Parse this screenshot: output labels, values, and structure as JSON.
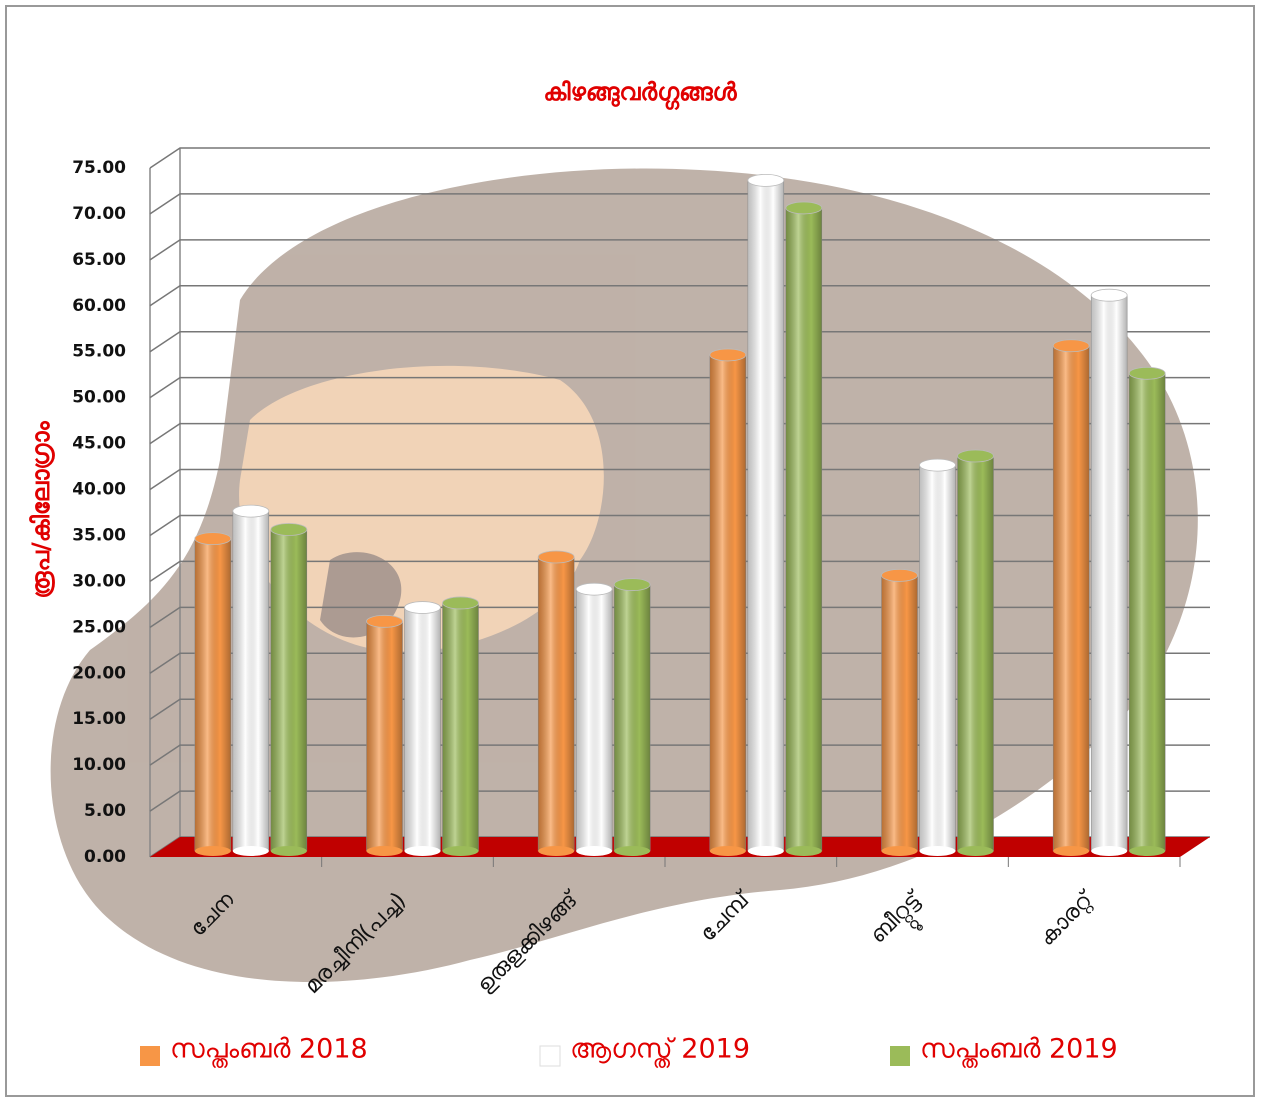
{
  "chart_data": {
    "type": "bar",
    "title": "കിഴങ്ങുവർഗ്ഗങ്ങൾ",
    "y_label": "രൂപ/കിലോഗ്രാം",
    "categories": [
      "ചേന",
      "മരച്ചീനി(പച്ച)",
      "ഉരുളക്കിഴങ്ങ്",
      "ചേമ്പ്",
      "ബീറ്റ്റൂട്ട്",
      "കാരറ്റ്"
    ],
    "series": [
      {
        "name": "സപ്തംബർ 2018",
        "color": "#f79646",
        "values": [
          34,
          25,
          32,
          54,
          30,
          55
        ]
      },
      {
        "name": "ആഗസ്ത് 2019",
        "color": "#ffffff",
        "values": [
          37,
          26.5,
          28.5,
          73,
          42,
          60.5
        ]
      },
      {
        "name": "സപ്തംബർ 2019",
        "color": "#9bbb59",
        "values": [
          35,
          27,
          29,
          70,
          43,
          52
        ]
      }
    ],
    "ylim": [
      0,
      75
    ],
    "yticks": [
      {
        "value": 0,
        "label": "0.00"
      },
      {
        "value": 5,
        "label": "5.00"
      },
      {
        "value": 10,
        "label": "10.00"
      },
      {
        "value": 15,
        "label": "15.00"
      },
      {
        "value": 20,
        "label": "20.00"
      },
      {
        "value": 25,
        "label": "25.00"
      },
      {
        "value": 30,
        "label": "30.00"
      },
      {
        "value": 35,
        "label": "35.00"
      },
      {
        "value": 40,
        "label": "40.00"
      },
      {
        "value": 45,
        "label": "45.00"
      },
      {
        "value": 50,
        "label": "50.00"
      },
      {
        "value": 55,
        "label": "55.00"
      },
      {
        "value": 60,
        "label": "60.00"
      },
      {
        "value": 65,
        "label": "65.00"
      },
      {
        "value": 70,
        "label": "70.00"
      },
      {
        "value": 75,
        "label": "75.00"
      }
    ],
    "grid": true
  }
}
